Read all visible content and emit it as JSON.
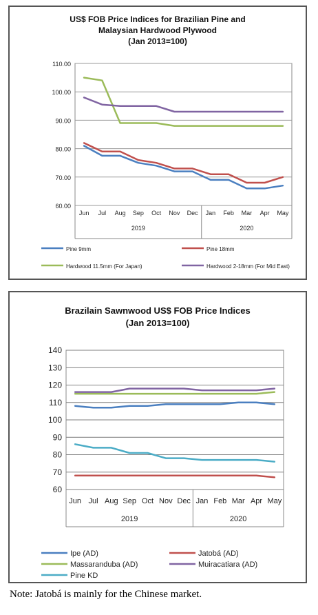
{
  "chart_data": [
    {
      "type": "line",
      "title": "US$ FOB Price Indices for Brazilian Pine and",
      "subtitle": "Malaysian Hardwood Plywood",
      "subtitle2": "(Jan 2013=100)",
      "categories": [
        "Jun",
        "Jul",
        "Aug",
        "Sep",
        "Oct",
        "Nov",
        "Dec",
        "Jan",
        "Feb",
        "Mar",
        "Apr",
        "May"
      ],
      "groups": [
        {
          "label": "2019",
          "count": 7
        },
        {
          "label": "2020",
          "count": 5
        }
      ],
      "ylim": [
        60,
        110
      ],
      "yticks": [
        "60.00",
        "70.00",
        "80.00",
        "90.00",
        "100.00",
        "110.00"
      ],
      "grid": true,
      "legend_position": "bottom",
      "series": [
        {
          "name": "Pine 9mm",
          "color": "#4a7fc0",
          "values": [
            81,
            77.5,
            77.5,
            75,
            74,
            72,
            72,
            69,
            69,
            66,
            66,
            67
          ]
        },
        {
          "name": "Pine 18mm",
          "color": "#c0504d",
          "values": [
            82,
            79,
            79,
            76,
            75,
            73,
            73,
            71,
            71,
            68,
            68,
            70
          ]
        },
        {
          "name": "Hardwood 11.5mm (For Japan)",
          "color": "#9bbb59",
          "values": [
            105,
            104,
            89,
            89,
            89,
            88,
            88,
            88,
            88,
            88,
            88,
            88
          ]
        },
        {
          "name": "Hardwood 2-18mm (For Mid East)",
          "color": "#8064a2",
          "values": [
            98,
            95.5,
            95,
            95,
            95,
            93,
            93,
            93,
            93,
            93,
            93,
            93
          ]
        }
      ]
    },
    {
      "type": "line",
      "title": "Brazilain Sawnwood US$ FOB Price Indices",
      "subtitle": "(Jan 2013=100)",
      "categories": [
        "Jun",
        "Jul",
        "Aug",
        "Sep",
        "Oct",
        "Nov",
        "Dec",
        "Jan",
        "Feb",
        "Mar",
        "Apr",
        "May"
      ],
      "groups": [
        {
          "label": "2019",
          "count": 7
        },
        {
          "label": "2020",
          "count": 5
        }
      ],
      "ylim": [
        60,
        140
      ],
      "yticks": [
        "60",
        "70",
        "80",
        "90",
        "100",
        "110",
        "120",
        "130",
        "140"
      ],
      "grid": true,
      "legend_position": "bottom",
      "series": [
        {
          "name": "Ipe (AD)",
          "color": "#4a7fc0",
          "values": [
            108,
            107,
            107,
            108,
            108,
            109,
            109,
            109,
            109,
            110,
            110,
            109
          ]
        },
        {
          "name": "Jatobá (AD)",
          "color": "#c0504d",
          "values": [
            68,
            68,
            68,
            68,
            68,
            68,
            68,
            68,
            68,
            68,
            68,
            67
          ]
        },
        {
          "name": "Massaranduba (AD)",
          "color": "#9bbb59",
          "values": [
            115,
            115,
            115,
            115,
            115,
            115,
            115,
            115,
            115,
            115,
            115,
            116
          ]
        },
        {
          "name": "Muiracatiara (AD)",
          "color": "#8064a2",
          "values": [
            116,
            116,
            116,
            118,
            118,
            118,
            118,
            117,
            117,
            117,
            117,
            118
          ]
        },
        {
          "name": "Pine KD",
          "color": "#4bacc6",
          "values": [
            86,
            84,
            84,
            81,
            81,
            78,
            78,
            77,
            77,
            77,
            77,
            76
          ]
        }
      ]
    }
  ],
  "note": "Note: Jatobá is mainly for the Chinese market."
}
